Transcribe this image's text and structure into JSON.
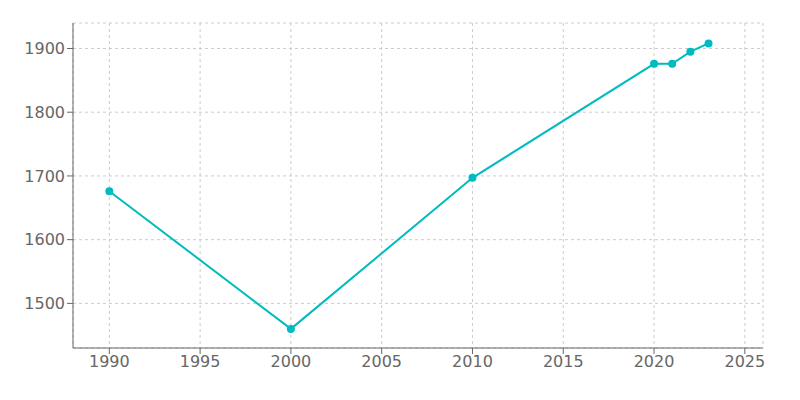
{
  "chart_data": {
    "type": "line",
    "x": [
      1990,
      2000,
      2010,
      2020,
      2021,
      2022,
      2023
    ],
    "values": [
      1676,
      1460,
      1697,
      1876,
      1876,
      1895,
      1908
    ],
    "color": "#00BBBF",
    "marker": "circle",
    "xlim": [
      1988,
      2026
    ],
    "ylim": [
      1430,
      1940
    ],
    "xticks": [
      1990,
      1995,
      2000,
      2005,
      2010,
      2015,
      2020,
      2025
    ],
    "yticks": [
      1500,
      1600,
      1700,
      1800,
      1900
    ],
    "grid": true
  }
}
